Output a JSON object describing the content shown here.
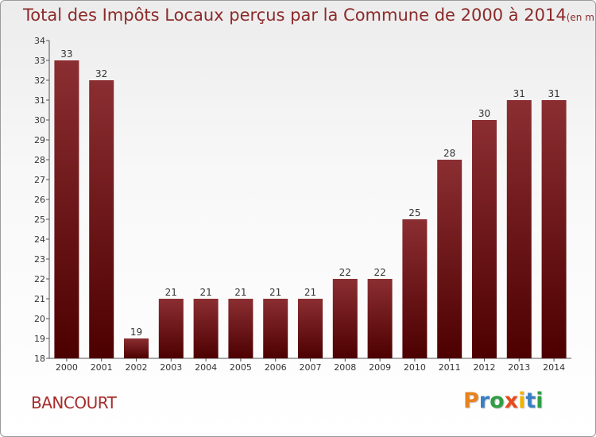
{
  "page": {
    "title": "Total des Impôts Locaux perçus par la Commune de 2000 à 2014",
    "unit": "(en milliers d'€)",
    "commune": "BANCOURT",
    "brand": "Proxiti"
  },
  "colors": {
    "bar_top": "#8b2e32",
    "bar_bottom": "#4d0000",
    "title": "#8c2a2a",
    "commune": "#a82c2c",
    "brand_letters": [
      "#e8821e",
      "#3a7fc4",
      "#2f9e44",
      "#e84a1e",
      "#f0b400",
      "#3a7fc4",
      "#2f9e44"
    ]
  },
  "chart_data": {
    "type": "bar",
    "title": "Total des Impôts Locaux perçus par la Commune de 2000 à 2014",
    "categories": [
      "2000",
      "2001",
      "2002",
      "2003",
      "2004",
      "2005",
      "2006",
      "2007",
      "2008",
      "2009",
      "2010",
      "2011",
      "2012",
      "2013",
      "2014"
    ],
    "values": [
      33,
      32,
      19,
      21,
      21,
      21,
      21,
      21,
      22,
      22,
      25,
      28,
      30,
      31,
      31
    ],
    "yticks": [
      18,
      19,
      20,
      21,
      22,
      23,
      24,
      25,
      26,
      27,
      28,
      29,
      30,
      31,
      32,
      33,
      34
    ],
    "ylim": [
      18,
      34
    ],
    "xlabel": "",
    "ylabel": "",
    "data_labels": true,
    "grid": false,
    "legend": "none"
  }
}
